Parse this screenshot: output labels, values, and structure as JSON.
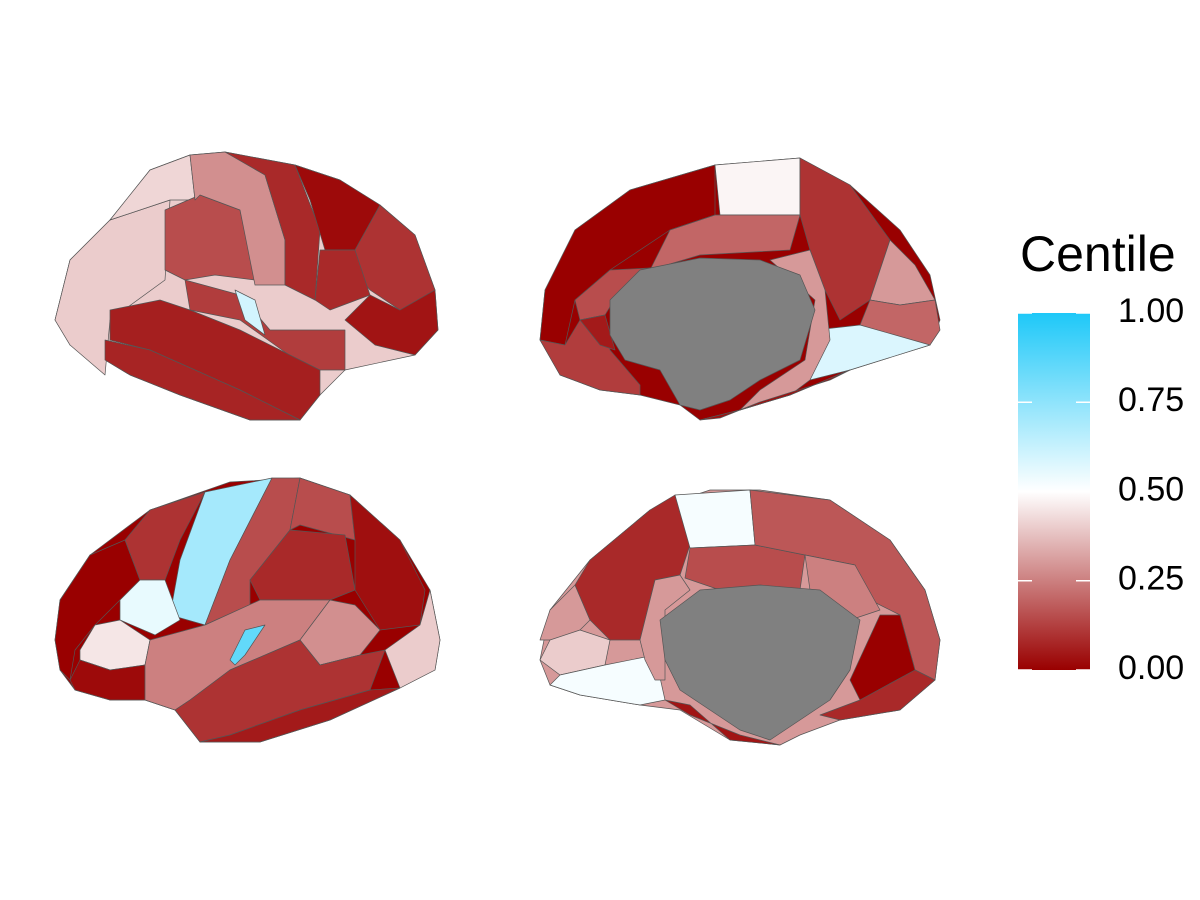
{
  "chart_data": {
    "type": "brain",
    "legend_title": "Centile",
    "clim": [
      0,
      1
    ],
    "cticks": [
      {
        "value": 0,
        "label": "0.00"
      },
      {
        "value": 0.25,
        "label": "0.25"
      },
      {
        "value": 0.5,
        "label": "0.50"
      },
      {
        "value": 0.75,
        "label": "0.75"
      },
      {
        "value": 1,
        "label": "1.00"
      }
    ],
    "colors": [
      "#990000",
      "#ffffff",
      "#1ec8f8"
    ],
    "na_color": "#808080",
    "views": [
      {
        "values": [
          0.4,
          0.42,
          0.15,
          0.28,
          0.08,
          0.02,
          0.1,
          0.08,
          0.04,
          0.12,
          0.6,
          0.06,
          0.07
        ]
      },
      {
        "values": [
          0.0,
          0.48,
          0.1,
          0.3,
          0.2,
          0.58,
          0.2,
          0.3,
          0.15,
          0.12,
          0.05,
          0.03
        ]
      },
      {
        "values": [
          0.0,
          0.1,
          0.7,
          0.55,
          0.45,
          0.02,
          0.15,
          0.15,
          0.08,
          0.03,
          0.4,
          0.25,
          0.28,
          0.85,
          0.1,
          0.05
        ]
      },
      {
        "values": [
          0.3,
          0.08,
          0.52,
          0.15,
          0.17,
          0.25,
          0.0,
          0.08,
          0.4,
          0.52,
          0.3,
          0.04
        ]
      }
    ]
  }
}
